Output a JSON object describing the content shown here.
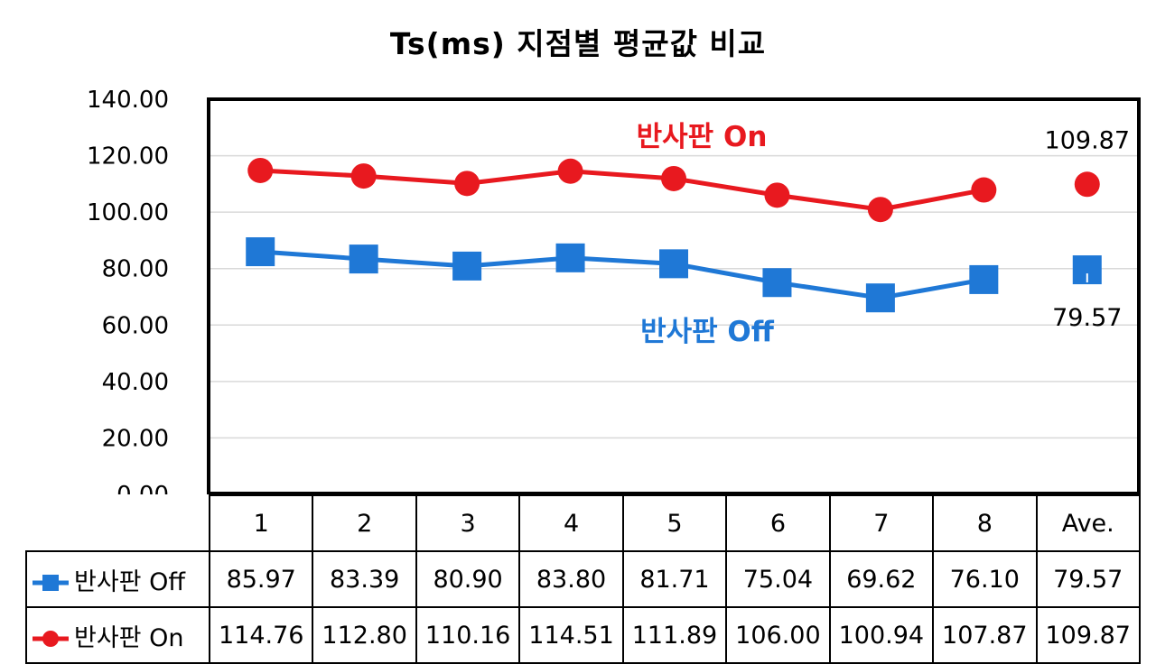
{
  "chart_data": {
    "type": "line",
    "title": "Ts(ms) 지점별 평균값 비교",
    "categories": [
      "1",
      "2",
      "3",
      "4",
      "5",
      "6",
      "7",
      "8",
      "Ave."
    ],
    "ylim": [
      0,
      140
    ],
    "yticks": [
      "0.00",
      "20.00",
      "40.00",
      "60.00",
      "80.00",
      "100.00",
      "120.00",
      "140.00"
    ],
    "grid": true,
    "legend": "data-table",
    "series": [
      {
        "name": "반사판 Off",
        "label": "반사판 Off",
        "color": "#1F78D6",
        "marker": "square",
        "values": [
          85.97,
          83.39,
          80.9,
          83.8,
          81.71,
          75.04,
          69.62,
          76.1,
          79.57
        ],
        "value_labels": [
          "85.97",
          "83.39",
          "80.90",
          "83.80",
          "81.71",
          "75.04",
          "69.62",
          "76.10",
          "79.57"
        ],
        "avg_annotation": "79.57"
      },
      {
        "name": "반사판 On",
        "label": "반사판 On",
        "color": "#E8191F",
        "marker": "circle",
        "values": [
          114.76,
          112.8,
          110.16,
          114.51,
          111.89,
          106.0,
          100.94,
          107.87,
          109.87
        ],
        "value_labels": [
          "114.76",
          "112.80",
          "110.16",
          "114.51",
          "111.89",
          "106.00",
          "100.94",
          "107.87",
          "109.87"
        ],
        "avg_annotation": "109.87"
      }
    ]
  }
}
